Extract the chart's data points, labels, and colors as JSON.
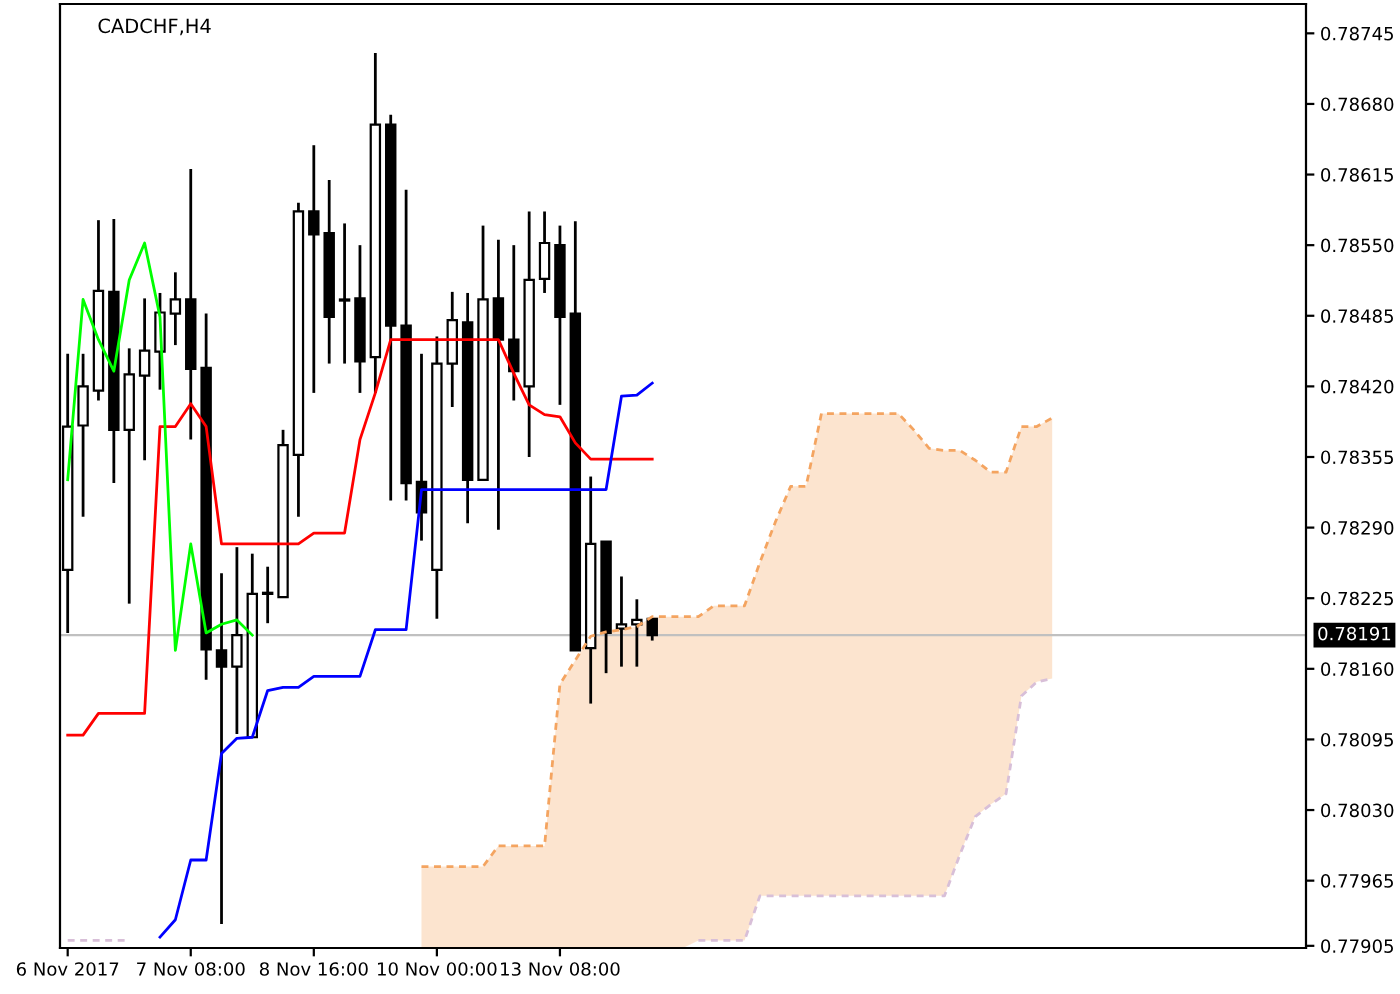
{
  "chart_data": {
    "type": "candlestick",
    "title": "CADCHF,H4",
    "categories": [
      "6 Nov 2017",
      null,
      null,
      null,
      null,
      null,
      null,
      null,
      "7 Nov 08:00",
      null,
      null,
      null,
      null,
      null,
      null,
      null,
      "8 Nov 16:00",
      null,
      null,
      null,
      null,
      null,
      null,
      null,
      "10 Nov 00:00",
      null,
      null,
      null,
      null,
      null,
      null,
      null,
      "13 Nov 08:00",
      null,
      null,
      null,
      null,
      null,
      null,
      null,
      null,
      null,
      null,
      null,
      null,
      null,
      null,
      null,
      null,
      null,
      null,
      null,
      null,
      null,
      null,
      null,
      null,
      null,
      null,
      null,
      null,
      null,
      null,
      null,
      null,
      null,
      null,
      null,
      null,
      null,
      null,
      null,
      null,
      null,
      null,
      null,
      null,
      null,
      null,
      null,
      null
    ],
    "ohlc": [
      [
        0.78251,
        0.7845,
        0.78193,
        0.78383
      ],
      [
        0.78384,
        0.7845,
        0.783,
        0.7842
      ],
      [
        0.78416,
        0.78573,
        0.78407,
        0.78508
      ],
      [
        0.78507,
        0.78574,
        0.78331,
        0.7838
      ],
      [
        0.7838,
        0.78455,
        0.7822,
        0.78431
      ],
      [
        0.7843,
        0.78501,
        0.78352,
        0.78453
      ],
      [
        0.78452,
        0.78506,
        0.78417,
        0.78488
      ],
      [
        0.78487,
        0.78525,
        0.78458,
        0.785
      ],
      [
        0.785,
        0.7862,
        0.78371,
        0.78436
      ],
      [
        0.78437,
        0.78487,
        0.7815,
        0.78178
      ],
      [
        0.78177,
        0.78248,
        0.77925,
        0.78162
      ],
      [
        0.78162,
        0.78272,
        0.781,
        0.78191
      ],
      [
        0.78097,
        0.78266,
        0.78097,
        0.78229
      ],
      [
        0.7823,
        0.78254,
        0.78202,
        0.78229
      ],
      [
        0.78226,
        0.7838,
        0.78226,
        0.78366
      ],
      [
        0.78357,
        0.78589,
        0.783,
        0.78581
      ],
      [
        0.78581,
        0.78642,
        0.78414,
        0.7856
      ],
      [
        0.78561,
        0.7861,
        0.78441,
        0.78484
      ],
      [
        0.785,
        0.7857,
        0.78441,
        0.78499
      ],
      [
        0.78501,
        0.7855,
        0.78414,
        0.78443
      ],
      [
        0.78447,
        0.78727,
        0.78414,
        0.78661
      ],
      [
        0.78661,
        0.7867,
        0.78315,
        0.78476
      ],
      [
        0.78476,
        0.78601,
        0.78315,
        0.78331
      ],
      [
        0.78332,
        0.7845,
        0.78278,
        0.78304
      ],
      [
        0.78251,
        0.78466,
        0.78206,
        0.78441
      ],
      [
        0.78441,
        0.78507,
        0.78401,
        0.78481
      ],
      [
        0.78479,
        0.78506,
        0.78294,
        0.78334
      ],
      [
        0.78334,
        0.78568,
        0.78334,
        0.785
      ],
      [
        0.78501,
        0.78555,
        0.78288,
        0.78463
      ],
      [
        0.78463,
        0.7855,
        0.78407,
        0.78434
      ],
      [
        0.7842,
        0.78581,
        0.78355,
        0.78518
      ],
      [
        0.78519,
        0.78581,
        0.78506,
        0.78552
      ],
      [
        0.7855,
        0.78568,
        0.78403,
        0.78484
      ],
      [
        0.78487,
        0.78572,
        0.78177,
        0.78177
      ],
      [
        0.78179,
        0.78337,
        0.78128,
        0.78275
      ],
      [
        0.78277,
        0.78277,
        0.78156,
        0.78193
      ],
      [
        0.78197,
        0.78245,
        0.78162,
        0.78201
      ],
      [
        0.78201,
        0.78224,
        0.78162,
        0.78205
      ],
      [
        0.78206,
        0.78206,
        0.78186,
        0.78191
      ],
      null,
      null,
      null,
      null,
      null,
      null,
      null,
      null,
      null,
      null,
      null,
      null,
      null,
      null,
      null,
      null,
      null,
      null,
      null,
      null,
      null,
      null,
      null,
      null,
      null,
      null,
      null,
      null,
      null,
      null,
      null,
      null,
      null,
      null,
      null,
      null,
      null,
      null,
      null,
      null,
      null,
      null
    ],
    "series": [
      {
        "type": "line",
        "color": "#ff0000",
        "line_style": "solid",
        "values": [
          0.78099,
          0.78099,
          0.78119,
          0.78119,
          0.78119,
          0.78119,
          0.78383,
          0.78383,
          0.78404,
          0.78383,
          0.78275,
          0.78275,
          0.78275,
          0.78275,
          0.78275,
          0.78275,
          0.78285,
          0.78285,
          0.78285,
          0.78371,
          0.78414,
          0.78463,
          0.78463,
          0.78463,
          0.78463,
          0.78463,
          0.78463,
          0.78463,
          0.78463,
          0.78432,
          0.78403,
          0.78394,
          0.78392,
          0.78368,
          0.78353,
          0.78353,
          0.78353,
          0.78353,
          0.78353,
          null,
          null,
          null,
          null,
          null,
          null,
          null,
          null,
          null,
          null,
          null,
          null,
          null,
          null,
          null,
          null,
          null,
          null,
          null,
          null,
          null,
          null,
          null,
          null,
          null,
          null,
          null,
          null,
          null,
          null,
          null,
          null,
          null,
          null,
          null,
          null,
          null,
          null,
          null,
          null,
          null,
          null
        ]
      },
      {
        "type": "line",
        "color": "#0000ff",
        "line_style": "solid",
        "values": [
          null,
          null,
          null,
          null,
          null,
          null,
          0.77913,
          0.77929,
          0.77984,
          0.77984,
          0.78082,
          0.78096,
          0.78097,
          0.7814,
          0.78143,
          0.78143,
          0.78153,
          0.78153,
          0.78153,
          0.78153,
          0.78196,
          0.78196,
          0.78196,
          0.78325,
          0.78325,
          0.78325,
          0.78325,
          0.78325,
          0.78325,
          0.78325,
          0.78325,
          0.78325,
          0.78325,
          0.78325,
          0.78325,
          0.78325,
          0.78411,
          0.78412,
          0.78423,
          null,
          null,
          null,
          null,
          null,
          null,
          null,
          null,
          null,
          null,
          null,
          null,
          null,
          null,
          null,
          null,
          null,
          null,
          null,
          null,
          null,
          null,
          null,
          null,
          null,
          null,
          null,
          null,
          null,
          null,
          null,
          null,
          null,
          null,
          null,
          null,
          null,
          null,
          null,
          null,
          null,
          null
        ]
      },
      {
        "type": "line",
        "color": "#00ff00",
        "line_style": "solid",
        "values": [
          0.78334,
          0.785,
          0.78463,
          0.78434,
          0.78518,
          0.78552,
          0.78484,
          0.78177,
          0.78275,
          0.78193,
          0.78201,
          0.78205,
          0.78191,
          null,
          null,
          null,
          null,
          null,
          null,
          null,
          null,
          null,
          null,
          null,
          null,
          null,
          null,
          null,
          null,
          null,
          null,
          null,
          null,
          null,
          null,
          null,
          null,
          null,
          null,
          null,
          null,
          null,
          null,
          null,
          null,
          null,
          null,
          null,
          null,
          null,
          null,
          null,
          null,
          null,
          null,
          null,
          null,
          null,
          null,
          null,
          null,
          null,
          null,
          null,
          null,
          null,
          null,
          null,
          null,
          null,
          null,
          null,
          null,
          null,
          null,
          null,
          null,
          null,
          null,
          null,
          null
        ]
      },
      {
        "type": "line",
        "color": "#f4a460",
        "line_style": "dashed",
        "values": [
          null,
          null,
          null,
          null,
          null,
          null,
          null,
          null,
          null,
          null,
          null,
          null,
          null,
          null,
          null,
          null,
          null,
          null,
          null,
          null,
          null,
          null,
          null,
          0.77978,
          0.77978,
          0.77978,
          0.77978,
          0.77978,
          0.77997,
          0.77997,
          0.77997,
          0.77997,
          0.78146,
          0.78168,
          0.7819,
          0.78194,
          0.78196,
          0.78199,
          0.78208,
          0.78208,
          0.78208,
          0.78208,
          0.78218,
          0.78218,
          0.78218,
          0.78258,
          0.78295,
          0.78328,
          0.78328,
          0.78395,
          0.78395,
          0.78395,
          0.78395,
          0.78395,
          0.78395,
          0.7838,
          0.78363,
          0.78361,
          0.78361,
          0.78352,
          0.78341,
          0.78341,
          0.78383,
          0.78383,
          0.78391,
          null,
          null,
          null,
          null,
          null,
          null,
          null,
          null,
          null,
          null,
          null,
          null,
          null,
          null,
          null,
          null
        ],
        "upper": [
          null,
          null,
          null,
          null,
          null,
          null,
          null,
          null,
          null,
          null,
          null,
          null,
          null,
          null,
          null,
          null,
          null,
          null,
          null,
          null,
          null,
          null,
          null,
          0.77978,
          0.77978,
          0.77978,
          0.77978,
          0.77978,
          0.77997,
          0.77997,
          0.77997,
          0.77997,
          0.78146,
          0.78168,
          0.7819,
          0.78194,
          0.78196,
          0.78199,
          0.78208,
          0.78208,
          0.78208,
          0.78208,
          0.78218,
          0.78218,
          0.78218,
          0.78258,
          0.78295,
          0.78328,
          0.78328,
          0.78395,
          0.78395,
          0.78395,
          0.78395,
          0.78395,
          0.78395,
          0.7838,
          0.78363,
          0.78361,
          0.78361,
          0.78352,
          0.78341,
          0.78341,
          0.78383,
          0.78383,
          0.78391,
          null,
          null,
          null,
          null,
          null,
          null,
          null,
          null,
          null,
          null,
          null,
          null,
          null,
          null,
          null,
          null
        ],
        "lower": [
          null,
          null,
          null,
          null,
          null,
          null,
          null,
          null,
          null,
          null,
          null,
          null,
          null,
          null,
          null,
          null,
          null,
          null,
          null,
          null,
          null,
          null,
          null,
          0.77903,
          0.77903,
          0.77903,
          0.77903,
          0.77903,
          0.77903,
          0.77903,
          0.77903,
          0.77903,
          0.77903,
          0.77903,
          0.77903,
          0.77903,
          0.77903,
          0.77903,
          0.77903,
          0.77903,
          0.77903,
          0.7791,
          0.7791,
          0.7791,
          0.7791,
          0.77951,
          0.77951,
          0.77951,
          0.77951,
          0.77951,
          0.77951,
          0.77951,
          0.77951,
          0.77951,
          0.77951,
          0.77951,
          0.77951,
          0.77951,
          0.77989,
          0.78024,
          0.78035,
          0.78045,
          0.78135,
          0.78148,
          0.78151,
          null,
          null,
          null,
          null,
          null,
          null,
          null,
          null,
          null,
          null,
          null,
          null,
          null,
          null,
          null,
          null
        ]
      },
      {
        "type": "line",
        "color": "#d8bfd8",
        "line_style": "dashed",
        "values": [
          0.7791,
          0.7791,
          0.7791,
          0.7791,
          0.7791,
          null,
          null,
          null,
          null,
          null,
          null,
          null,
          null,
          null,
          null,
          null,
          null,
          null,
          null,
          null,
          null,
          null,
          null,
          null,
          null,
          null,
          null,
          null,
          null,
          null,
          null,
          null,
          null,
          null,
          null,
          null,
          null,
          null,
          null,
          null,
          null,
          0.7791,
          0.7791,
          0.7791,
          0.7791,
          0.77951,
          0.77951,
          0.77951,
          0.77951,
          0.77951,
          0.77951,
          0.77951,
          0.77951,
          0.77951,
          0.77951,
          0.77951,
          0.77951,
          0.77951,
          0.77989,
          0.78024,
          0.78035,
          0.78045,
          0.78135,
          0.78148,
          0.78151,
          null,
          null,
          null,
          null,
          null,
          null,
          null,
          null,
          null,
          null,
          null,
          null,
          null,
          null,
          null,
          null
        ]
      }
    ],
    "ylim": [
      0.77903,
      0.78772
    ],
    "yticks": [
      0.78745,
      {
        "value": 0.7868,
        "label": "0.78680"
      },
      0.78615,
      {
        "value": 0.7855,
        "label": "0.78550"
      },
      0.78485,
      {
        "value": 0.7842,
        "label": "0.78420"
      },
      0.78355,
      {
        "value": 0.7829,
        "label": "0.78290"
      },
      0.78225,
      {
        "value": 0.7816,
        "label": "0.78160"
      },
      0.78095,
      {
        "value": 0.7803,
        "label": "0.78030"
      },
      0.77965,
      0.77905
    ],
    "ref_lines": [
      {
        "axis": "y",
        "value": 0.78191,
        "label": "0.78191",
        "color": "#c0c0c0"
      }
    ],
    "grid": false,
    "legend": false
  }
}
